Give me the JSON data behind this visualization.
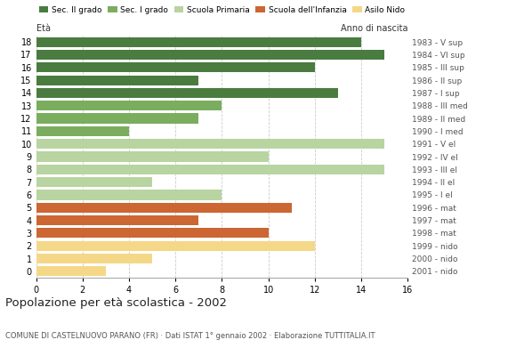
{
  "ages": [
    18,
    17,
    16,
    15,
    14,
    13,
    12,
    11,
    10,
    9,
    8,
    7,
    6,
    5,
    4,
    3,
    2,
    1,
    0
  ],
  "values": [
    14,
    15,
    12,
    7,
    13,
    8,
    7,
    4,
    15,
    10,
    15,
    5,
    8,
    11,
    7,
    10,
    12,
    5,
    3
  ],
  "years": [
    "1983 - V sup",
    "1984 - VI sup",
    "1985 - III sup",
    "1986 - II sup",
    "1987 - I sup",
    "1988 - III med",
    "1989 - II med",
    "1990 - I med",
    "1991 - V el",
    "1992 - IV el",
    "1993 - III el",
    "1994 - II el",
    "1995 - I el",
    "1996 - mat",
    "1997 - mat",
    "1998 - mat",
    "1999 - nido",
    "2000 - nido",
    "2001 - nido"
  ],
  "categories": {
    "Sec. II grado": {
      "ages": [
        18,
        17,
        16,
        15,
        14
      ],
      "color": "#4a7c3f"
    },
    "Sec. I grado": {
      "ages": [
        13,
        12,
        11
      ],
      "color": "#7aad5e"
    },
    "Scuola Primaria": {
      "ages": [
        10,
        9,
        8,
        7,
        6
      ],
      "color": "#b8d4a0"
    },
    "Scuola dell'Infanzia": {
      "ages": [
        5,
        4,
        3
      ],
      "color": "#cc6633"
    },
    "Asilo Nido": {
      "ages": [
        2,
        1,
        0
      ],
      "color": "#f5d788"
    }
  },
  "legend_colors": {
    "Sec. II grado": "#4a7c3f",
    "Sec. I grado": "#7aad5e",
    "Scuola Primaria": "#b8d4a0",
    "Scuola dell'Infanzia": "#cc6633",
    "Asilo Nido": "#f5d788"
  },
  "title": "Popolazione per età scolastica - 2002",
  "subtitle": "COMUNE DI CASTELNUOVO PARANO (FR) · Dati ISTAT 1° gennaio 2002 · Elaborazione TUTTITALIA.IT",
  "label_left": "Età",
  "label_right": "Anno di nascita",
  "xlim": [
    0,
    16
  ],
  "xticks": [
    0,
    2,
    4,
    6,
    8,
    10,
    12,
    14,
    16
  ],
  "background_color": "#ffffff",
  "grid_color": "#cccccc"
}
